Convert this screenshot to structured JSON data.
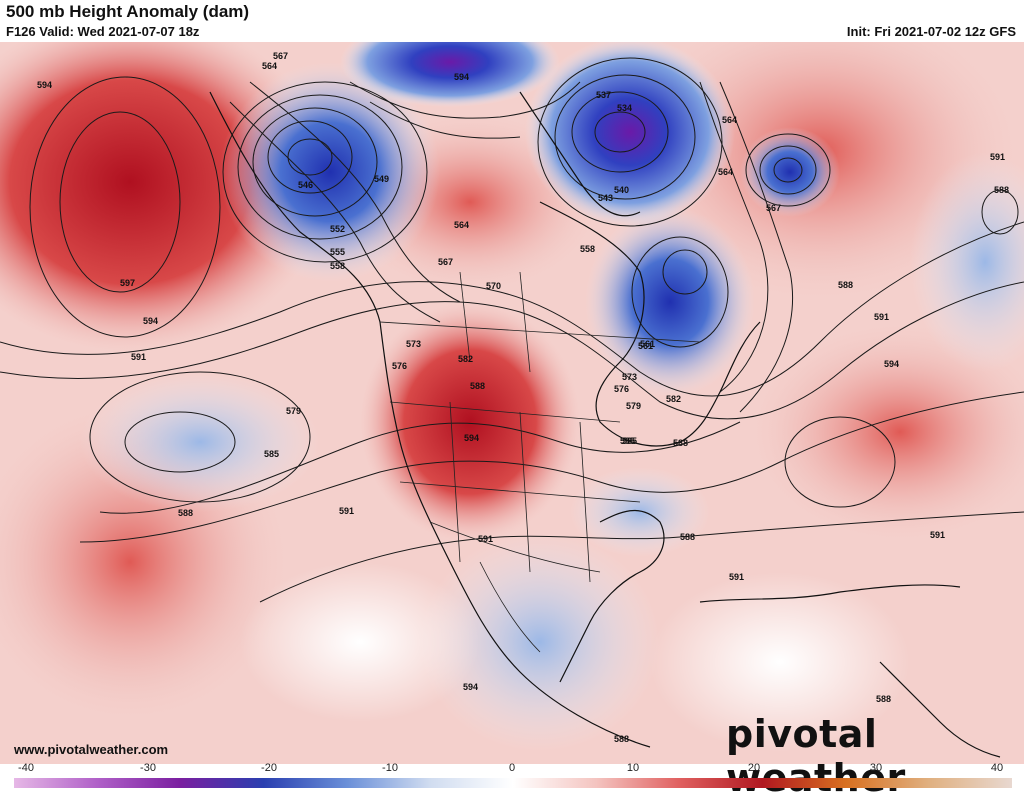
{
  "header": {
    "title": "500 mb Height Anomaly (dam)",
    "valid": "F126 Valid: Wed 2021-07-07 18z",
    "init": "Init: Fri 2021-07-02 12z GFS"
  },
  "footer": {
    "website": "www.pivotalweather.com",
    "brand": "pivotal weather"
  },
  "colorbar": {
    "ticks": [
      "-40",
      "-30",
      "-20",
      "-10",
      "0",
      "10",
      "20",
      "30",
      "40"
    ],
    "colors": [
      "#e6b8e6",
      "#b060c8",
      "#7a1fa0",
      "#2a3fb0",
      "#6a8fd8",
      "#d0dcf0",
      "#ffffff",
      "#f4c4c0",
      "#e06060",
      "#b01820",
      "#d87020",
      "#e0b080",
      "#e8d8d0"
    ]
  },
  "contour_labels": [
    "594",
    "567",
    "564",
    "546",
    "549",
    "552",
    "555",
    "558",
    "537",
    "534",
    "543",
    "540",
    "594",
    "597",
    "594",
    "591",
    "561",
    "564",
    "567",
    "570",
    "573",
    "576",
    "579",
    "582",
    "585",
    "588",
    "594",
    "591",
    "594",
    "588",
    "591",
    "591",
    "588",
    "588",
    "588",
    "591",
    "585",
    "588",
    "594",
    "591",
    "588",
    "558",
    "561",
    "564",
    "564",
    "567",
    "573",
    "576",
    "579",
    "582",
    "585",
    "588",
    "591"
  ]
}
